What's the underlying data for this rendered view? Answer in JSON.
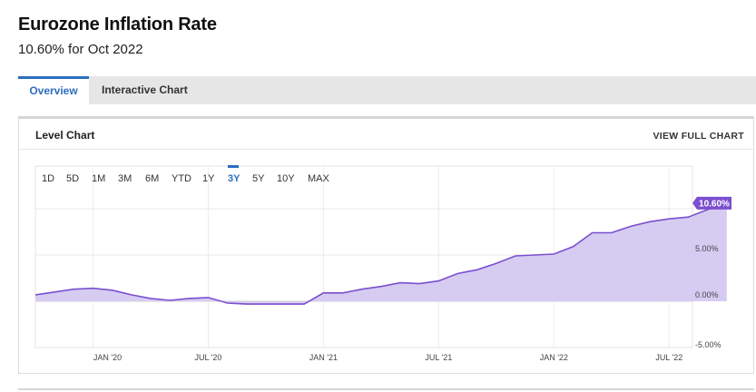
{
  "header": {
    "title": "Eurozone Inflation Rate",
    "subtitle": "10.60% for Oct 2022"
  },
  "tabs": [
    {
      "label": "Overview",
      "active": true
    },
    {
      "label": "Interactive Chart",
      "active": false
    }
  ],
  "card": {
    "title": "Level Chart",
    "view_full_label": "VIEW FULL CHART"
  },
  "range_buttons": [
    "1D",
    "5D",
    "1M",
    "3M",
    "6M",
    "YTD",
    "1Y",
    "3Y",
    "5Y",
    "10Y",
    "MAX"
  ],
  "active_range": "3Y",
  "colors": {
    "accent": "#2a6ebf",
    "line": "#7b4fcf",
    "fill": "#d6ccf2",
    "badge": "#7b4fcf"
  },
  "chart_data": {
    "type": "area",
    "x_tick_labels": [
      "JAN '20",
      "JUL '20",
      "JAN '21",
      "JUL '21",
      "JAN '22",
      "JUL '22"
    ],
    "x_tick_months": [
      0,
      6,
      12,
      18,
      24,
      30
    ],
    "y_tick_labels": [
      "5.00%",
      "0.00%",
      "-5.00%"
    ],
    "y_tick_values": [
      5,
      0,
      -5
    ],
    "ylim": [
      -5,
      15
    ],
    "grid": true,
    "last_value_label": "10.60%",
    "series": [
      {
        "x": [
          "Oct 2019",
          "Nov 2019",
          "Dec 2019",
          "Jan 2020",
          "Feb 2020",
          "Mar 2020",
          "Apr 2020",
          "May 2020",
          "Jun 2020",
          "Jul 2020",
          "Aug 2020",
          "Sep 2020",
          "Oct 2020",
          "Nov 2020",
          "Dec 2020",
          "Jan 2021",
          "Feb 2021",
          "Mar 2021",
          "Apr 2021",
          "May 2021",
          "Jun 2021",
          "Jul 2021",
          "Aug 2021",
          "Sep 2021",
          "Oct 2021",
          "Nov 2021",
          "Dec 2021",
          "Jan 2022",
          "Feb 2022",
          "Mar 2022",
          "Apr 2022",
          "May 2022",
          "Jun 2022",
          "Jul 2022",
          "Aug 2022",
          "Sep 2022",
          "Oct 2022"
        ],
        "values": [
          0.7,
          1.0,
          1.3,
          1.4,
          1.2,
          0.7,
          0.3,
          0.1,
          0.3,
          0.4,
          -0.2,
          -0.3,
          -0.3,
          -0.3,
          -0.3,
          0.9,
          0.9,
          1.3,
          1.6,
          2.0,
          1.9,
          2.2,
          3.0,
          3.4,
          4.1,
          4.9,
          5.0,
          5.1,
          5.9,
          7.4,
          7.4,
          8.1,
          8.6,
          8.9,
          9.1,
          9.9,
          10.6
        ]
      }
    ]
  }
}
